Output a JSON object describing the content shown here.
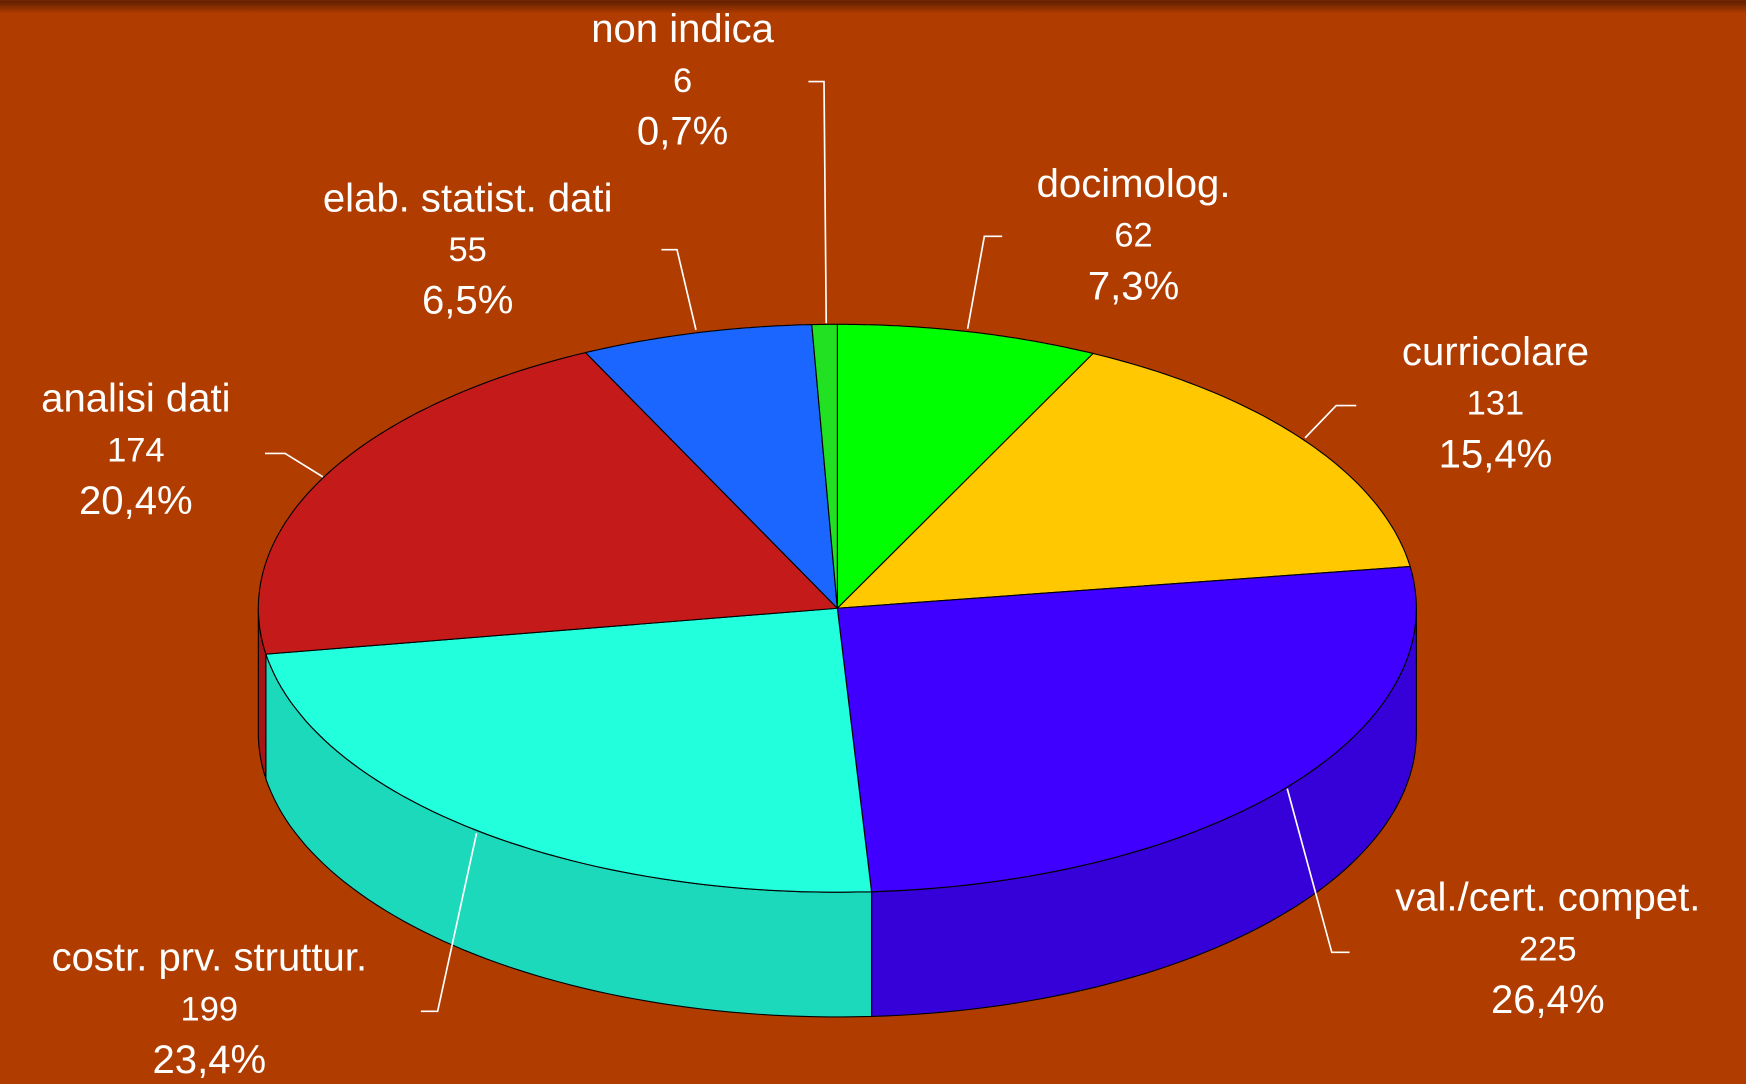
{
  "chart_data": {
    "type": "pie3d",
    "categories": [
      "docimolog.",
      "curricolare",
      "val./cert. compet.",
      "costr. prv. struttur.",
      "analisi dati",
      "elab. statist. dati",
      "non indica"
    ],
    "values": [
      62,
      131,
      225,
      199,
      174,
      55,
      6
    ],
    "percents": [
      7.3,
      15.4,
      26.4,
      23.4,
      20.4,
      6.5,
      0.7
    ],
    "percent_labels": [
      "7,3%",
      "15,4%",
      "26,4%",
      "23,4%",
      "20,4%",
      "6,5%",
      "0,7%"
    ],
    "colors": [
      "#00ff00",
      "#ffc800",
      "#4000ff",
      "#22ffdd",
      "#c41a1a",
      "#1a66ff",
      "#22e022"
    ]
  }
}
